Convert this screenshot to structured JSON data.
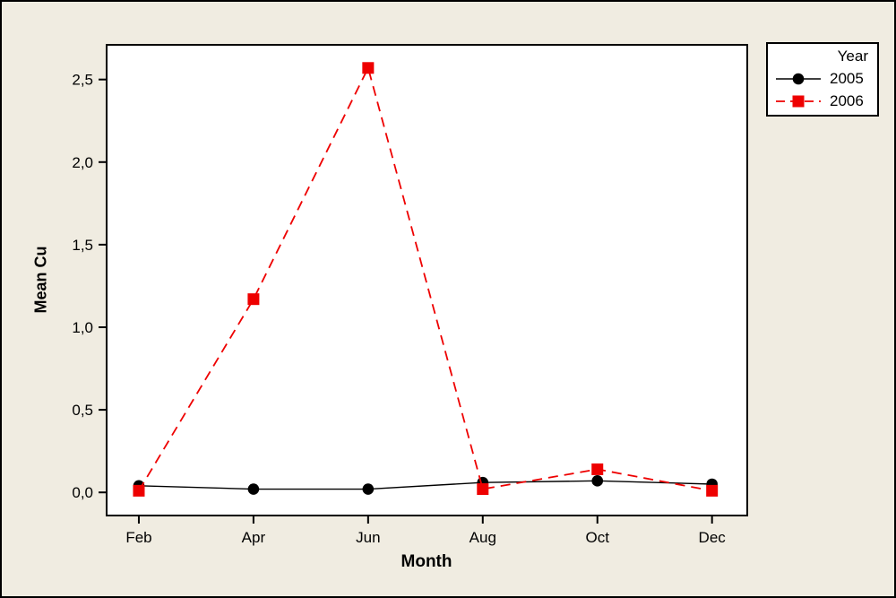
{
  "window": {
    "background_color": "#F0ECE1",
    "border_color": "#000000"
  },
  "legend": {
    "title": "Year",
    "position": "outside-top-right"
  },
  "chart_data": {
    "type": "line",
    "title": "",
    "xlabel": "Month",
    "ylabel": "Mean Cu",
    "categories": [
      "Feb",
      "Apr",
      "Jun",
      "Aug",
      "Oct",
      "Dec"
    ],
    "series": [
      {
        "name": "2005",
        "values": [
          0.04,
          0.02,
          0.02,
          0.06,
          0.07,
          0.05
        ],
        "color": "#000000",
        "marker": "circle",
        "line_style": "solid"
      },
      {
        "name": "2006",
        "values": [
          0.01,
          1.17,
          2.57,
          0.02,
          0.14,
          0.01
        ],
        "color": "#EE0000",
        "marker": "square",
        "line_style": "dashed"
      }
    ],
    "y_tick_labels": [
      "0,0",
      "0,5",
      "1,0",
      "1,5",
      "2,0",
      "2,5"
    ],
    "y_tick_values": [
      0,
      0.5,
      1.0,
      1.5,
      2.0,
      2.5
    ],
    "ylim": [
      -0.14,
      2.71
    ],
    "grid": false,
    "plot_background": "#FFFFFF",
    "axis_color": "#000000",
    "decimal_separator": ",",
    "legend_position": "outside-top-right"
  }
}
